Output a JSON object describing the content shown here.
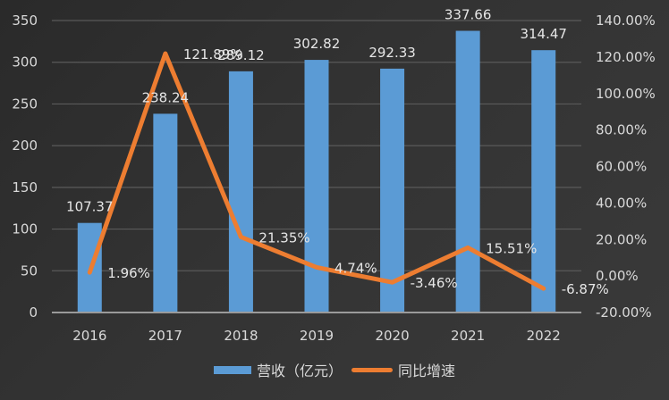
{
  "chart_data": {
    "type": "bar+line",
    "title": "",
    "categories": [
      "2016",
      "2017",
      "2018",
      "2019",
      "2020",
      "2021",
      "2022"
    ],
    "series": [
      {
        "name": "营收（亿元）",
        "type": "bar",
        "axis": "left",
        "color": "#5b9bd5",
        "values": [
          107.37,
          238.24,
          289.12,
          302.82,
          292.33,
          337.66,
          314.47
        ],
        "labels": [
          "107.37",
          "238.24",
          "289.12",
          "302.82",
          "292.33",
          "337.66",
          "314.47"
        ]
      },
      {
        "name": "同比增速",
        "type": "line",
        "axis": "right",
        "color": "#ed7d31",
        "values": [
          1.96,
          121.89,
          21.35,
          4.74,
          -3.46,
          15.51,
          -6.87
        ],
        "labels": [
          "1.96%",
          "121.89%",
          "21.35%",
          "4.74%",
          "-3.46%",
          "15.51%",
          "-6.87%"
        ]
      }
    ],
    "left_axis": {
      "ylim": [
        0,
        350
      ],
      "ticks": [
        "0",
        "50",
        "100",
        "150",
        "200",
        "250",
        "300",
        "350"
      ]
    },
    "right_axis": {
      "ylim": [
        -20,
        140
      ],
      "ticks": [
        "-20.00%",
        "0.00%",
        "20.00%",
        "40.00%",
        "60.00%",
        "80.00%",
        "100.00%",
        "120.00%",
        "140.00%"
      ]
    },
    "grid": true,
    "legend_position": "bottom"
  },
  "legend": {
    "bar_label": "营收（亿元）",
    "line_label": "同比增速"
  }
}
